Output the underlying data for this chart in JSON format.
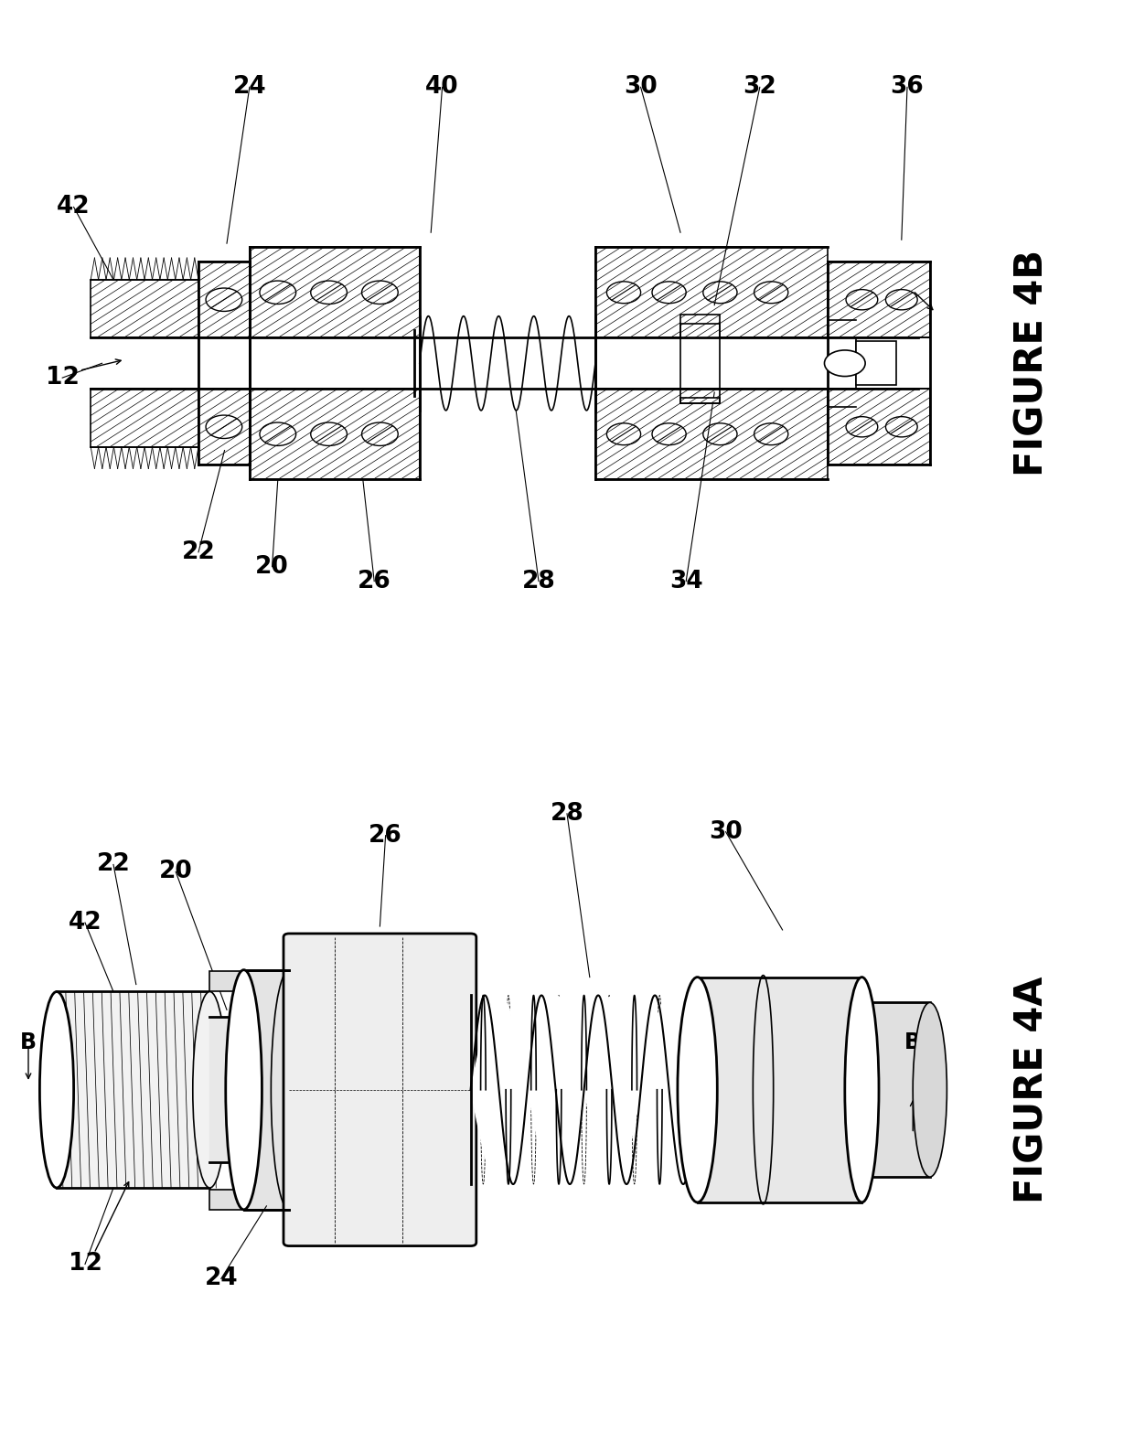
{
  "background_color": "#ffffff",
  "line_color": "#000000",
  "figure_title_4B": "FIGURE 4B",
  "figure_title_4A": "FIGURE 4A",
  "title_fontsize": 30,
  "label_fontsize": 19,
  "fig_width": 12.4,
  "fig_height": 15.89
}
